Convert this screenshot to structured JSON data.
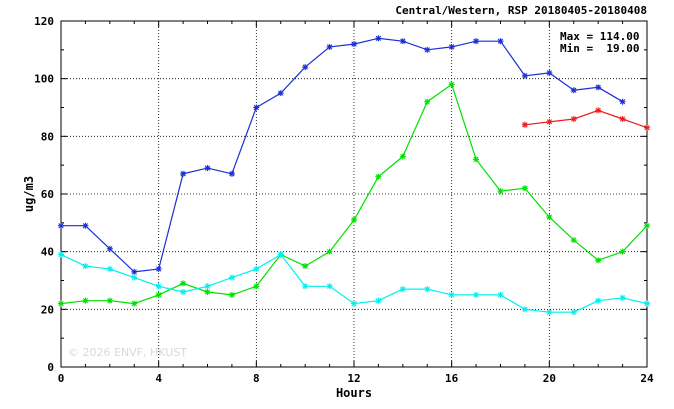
{
  "chart_data": {
    "type": "line",
    "title": "Central/Western, RSP 20180405-20180408",
    "xlabel": "Hours",
    "ylabel": "ug/m3",
    "xlim": [
      0,
      24
    ],
    "ylim": [
      0,
      120
    ],
    "xticks": [
      0,
      4,
      8,
      12,
      16,
      20,
      24
    ],
    "yticks": [
      0,
      20,
      40,
      60,
      80,
      100,
      120
    ],
    "grid": true,
    "stats": {
      "max_label": "Max = 114.00",
      "min_label": "Min =  19.00"
    },
    "watermark": "© 2026  ENVF, HKUST",
    "series": [
      {
        "color": "#1a2fd6",
        "x": [
          0,
          1,
          2,
          3,
          4,
          5,
          6,
          7,
          8,
          9,
          10,
          11,
          12,
          13,
          14,
          15,
          16,
          17,
          18,
          19,
          20,
          21,
          22,
          23
        ],
        "values": [
          49,
          49,
          41,
          33,
          34,
          67,
          69,
          67,
          90,
          95,
          104,
          111,
          112,
          114,
          113,
          110,
          111,
          113,
          113,
          101,
          102,
          96,
          97,
          92
        ]
      },
      {
        "color": "#00e000",
        "x": [
          0,
          1,
          2,
          3,
          4,
          5,
          6,
          7,
          8,
          9,
          10,
          11,
          12,
          13,
          14,
          15,
          16,
          17,
          18,
          19,
          20,
          21,
          22,
          23,
          24
        ],
        "values": [
          22,
          23,
          23,
          22,
          25,
          29,
          26,
          25,
          28,
          39,
          35,
          40,
          51,
          66,
          73,
          92,
          98,
          72,
          61,
          62,
          52,
          44,
          37,
          40,
          49
        ]
      },
      {
        "color": "#00f0f0",
        "x": [
          0,
          1,
          2,
          3,
          4,
          5,
          6,
          7,
          8,
          9,
          10,
          11,
          12,
          13,
          14,
          15,
          16,
          17,
          18,
          19,
          20,
          21,
          22,
          23,
          24
        ],
        "values": [
          39,
          35,
          34,
          31,
          28,
          26,
          28,
          31,
          34,
          39,
          28,
          28,
          22,
          23,
          27,
          27,
          25,
          25,
          25,
          20,
          19,
          19,
          23,
          24,
          22
        ]
      },
      {
        "color": "#ee1c1c",
        "x": [
          19,
          20,
          21,
          22,
          23,
          24
        ],
        "values": [
          84,
          85,
          86,
          89,
          86,
          83
        ]
      }
    ]
  }
}
